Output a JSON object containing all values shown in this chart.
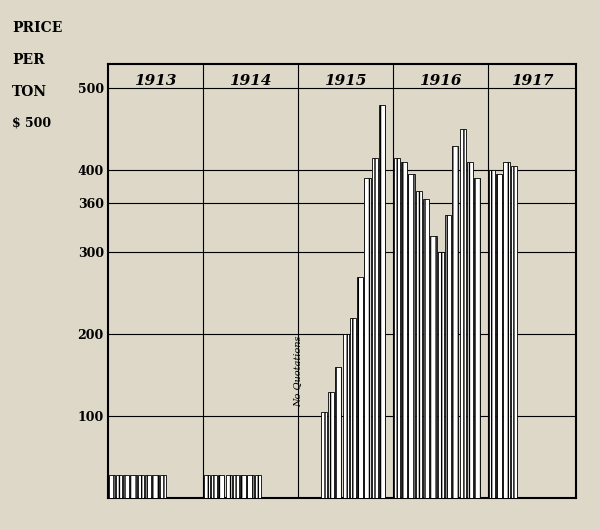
{
  "background_color": "#ddd8c8",
  "bar_hatch": "|||",
  "ytick_labels": [
    "100",
    "200",
    "300",
    "360",
    "400",
    "500"
  ],
  "ytick_values": [
    100,
    200,
    300,
    360,
    400,
    500
  ],
  "ylim": [
    0,
    530
  ],
  "ylabel_lines": [
    "PRICE",
    "PER",
    "TON"
  ],
  "dollar_label": "$ 500",
  "year_labels": [
    "1913",
    "1914",
    "1915",
    "1916",
    "1917"
  ],
  "note_text": "No Quotations",
  "note_rotation": 90,
  "bars": [
    {
      "month_idx": 0,
      "year": 1913,
      "value": 28
    },
    {
      "month_idx": 1,
      "year": 1913,
      "value": 28
    },
    {
      "month_idx": 2,
      "year": 1913,
      "value": 28
    },
    {
      "month_idx": 3,
      "year": 1913,
      "value": 28
    },
    {
      "month_idx": 4,
      "year": 1913,
      "value": 28
    },
    {
      "month_idx": 5,
      "year": 1913,
      "value": 28
    },
    {
      "month_idx": 6,
      "year": 1913,
      "value": 28
    },
    {
      "month_idx": 7,
      "year": 1913,
      "value": 28
    },
    {
      "month_idx": 0,
      "year": 1914,
      "value": 28
    },
    {
      "month_idx": 1,
      "year": 1914,
      "value": 28
    },
    {
      "month_idx": 2,
      "year": 1914,
      "value": 28
    },
    {
      "month_idx": 3,
      "year": 1914,
      "value": 28
    },
    {
      "month_idx": 4,
      "year": 1914,
      "value": 28
    },
    {
      "month_idx": 5,
      "year": 1914,
      "value": 28
    },
    {
      "month_idx": 6,
      "year": 1914,
      "value": 28
    },
    {
      "month_idx": 7,
      "year": 1914,
      "value": 28
    },
    {
      "month_idx": 3,
      "year": 1915,
      "value": 105
    },
    {
      "month_idx": 4,
      "year": 1915,
      "value": 130
    },
    {
      "month_idx": 5,
      "year": 1915,
      "value": 160
    },
    {
      "month_idx": 6,
      "year": 1915,
      "value": 200
    },
    {
      "month_idx": 7,
      "year": 1915,
      "value": 220
    },
    {
      "month_idx": 8,
      "year": 1915,
      "value": 270
    },
    {
      "month_idx": 9,
      "year": 1915,
      "value": 390
    },
    {
      "month_idx": 10,
      "year": 1915,
      "value": 415
    },
    {
      "month_idx": 11,
      "year": 1915,
      "value": 480
    },
    {
      "month_idx": 0,
      "year": 1916,
      "value": 415
    },
    {
      "month_idx": 1,
      "year": 1916,
      "value": 410
    },
    {
      "month_idx": 2,
      "year": 1916,
      "value": 395
    },
    {
      "month_idx": 3,
      "year": 1916,
      "value": 375
    },
    {
      "month_idx": 4,
      "year": 1916,
      "value": 365
    },
    {
      "month_idx": 5,
      "year": 1916,
      "value": 320
    },
    {
      "month_idx": 6,
      "year": 1916,
      "value": 300
    },
    {
      "month_idx": 7,
      "year": 1916,
      "value": 345
    },
    {
      "month_idx": 8,
      "year": 1916,
      "value": 430
    },
    {
      "month_idx": 9,
      "year": 1916,
      "value": 450
    },
    {
      "month_idx": 10,
      "year": 1916,
      "value": 410
    },
    {
      "month_idx": 11,
      "year": 1916,
      "value": 390
    },
    {
      "month_idx": 0,
      "year": 1917,
      "value": 400
    },
    {
      "month_idx": 1,
      "year": 1917,
      "value": 395
    },
    {
      "month_idx": 2,
      "year": 1917,
      "value": 410
    },
    {
      "month_idx": 3,
      "year": 1917,
      "value": 405
    }
  ]
}
